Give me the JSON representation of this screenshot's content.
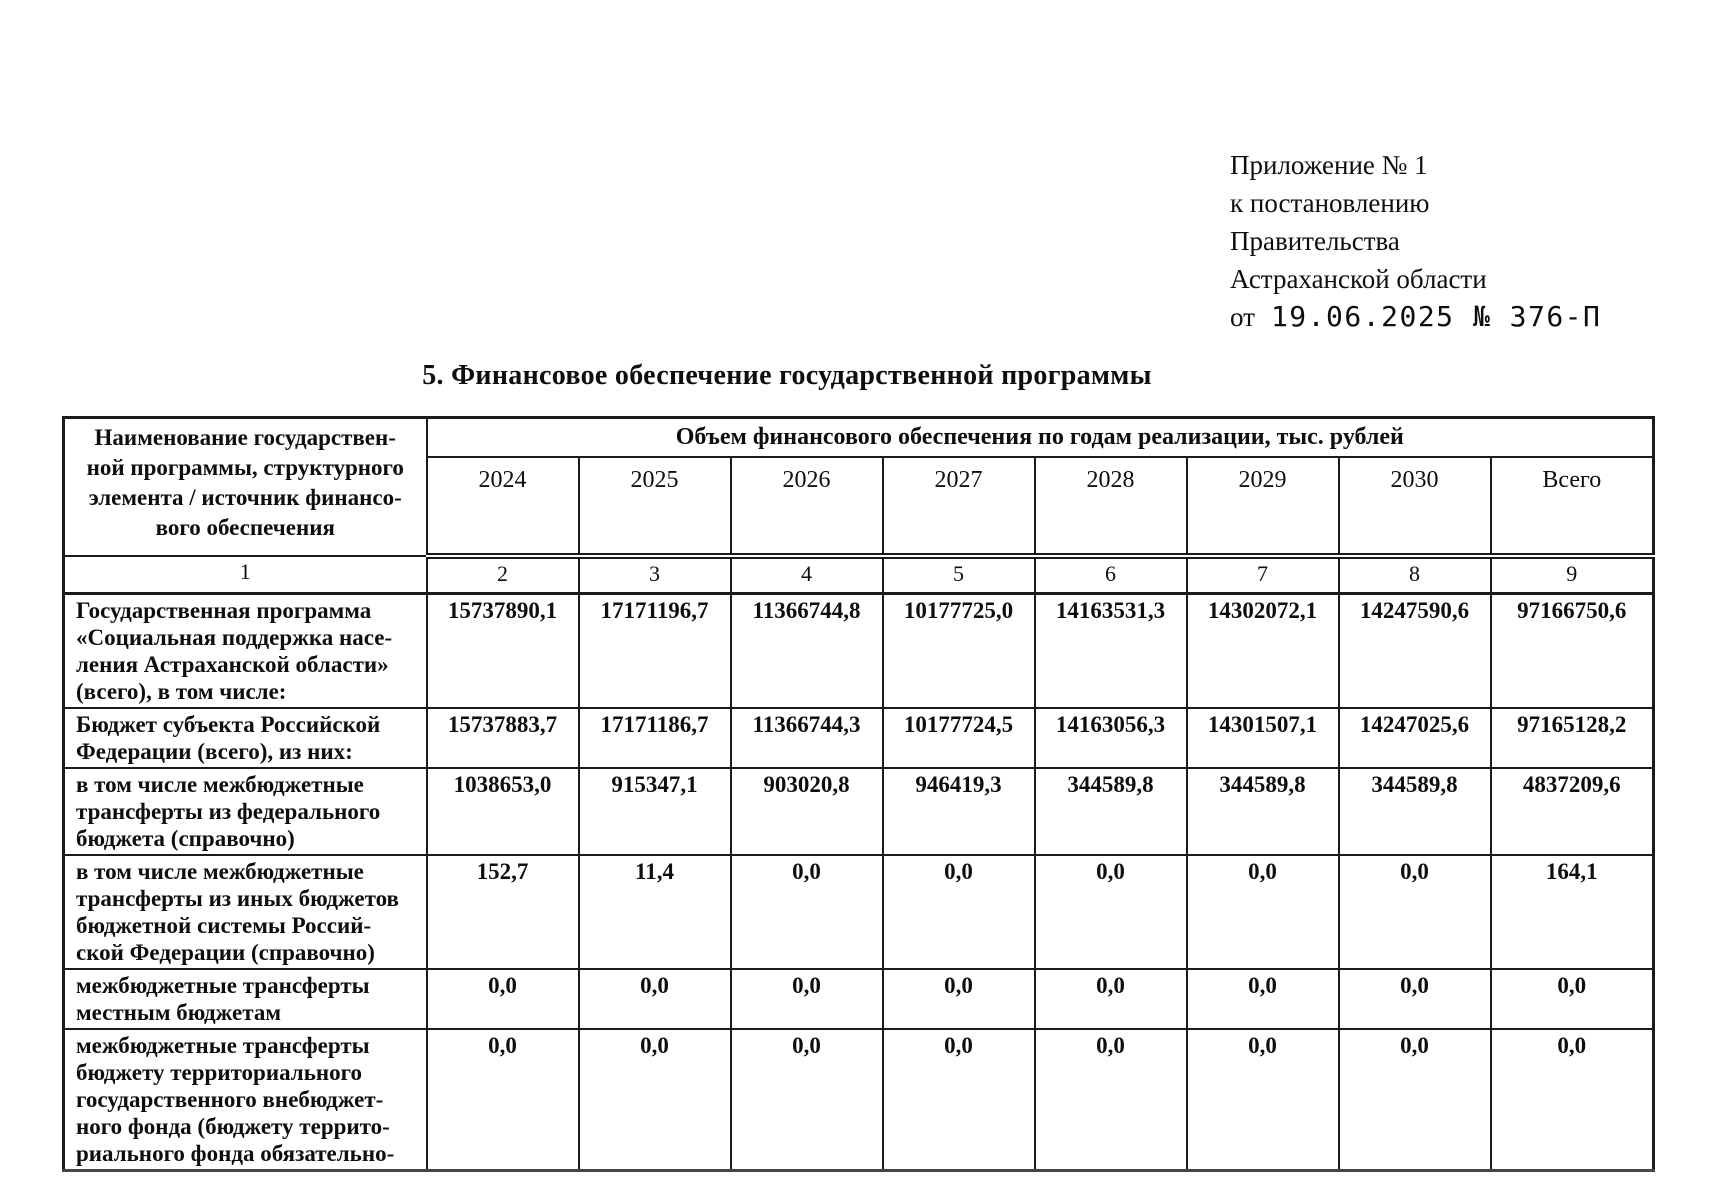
{
  "appendix": {
    "lines": [
      "Приложение № 1",
      "к постановлению",
      "Правительства",
      "Астраханской области"
    ],
    "date_prefix": "от",
    "date_value": "19.06.2025 № 376-П"
  },
  "title": "5. Финансовое обеспечение государственной программы",
  "table": {
    "col1_header": "Наименование государствен-\nной программы, структурного\nэлемента / источник финансо-\nвого обеспечения",
    "span_header": "Объем финансового обеспечения по годам реализации, тыс. рублей",
    "year_headers": [
      "2024",
      "2025",
      "2026",
      "2027",
      "2028",
      "2029",
      "2030",
      "Всего"
    ],
    "column_numbers": [
      "1",
      "2",
      "3",
      "4",
      "5",
      "6",
      "7",
      "8",
      "9"
    ],
    "rows": [
      {
        "label": "Государственная программа\n«Социальная поддержка насе-\nления Астраханской области»\n(всего), в том числе:",
        "values": [
          "15737890,1",
          "17171196,7",
          "11366744,8",
          "10177725,0",
          "14163531,3",
          "14302072,1",
          "14247590,6",
          "97166750,6"
        ]
      },
      {
        "label": "Бюджет субъекта Российской\nФедерации (всего), из них:",
        "values": [
          "15737883,7",
          "17171186,7",
          "11366744,3",
          "10177724,5",
          "14163056,3",
          "14301507,1",
          "14247025,6",
          "97165128,2"
        ]
      },
      {
        "label": "в том числе межбюджетные\nтрансферты из федерального\nбюджета (справочно)",
        "values": [
          "1038653,0",
          "915347,1",
          "903020,8",
          "946419,3",
          "344589,8",
          "344589,8",
          "344589,8",
          "4837209,6"
        ]
      },
      {
        "label": "в том числе межбюджетные\nтрансферты из иных бюджетов\nбюджетной системы Россий-\nской Федерации (справочно)",
        "values": [
          "152,7",
          "11,4",
          "0,0",
          "0,0",
          "0,0",
          "0,0",
          "0,0",
          "164,1"
        ]
      },
      {
        "label": "межбюджетные трансферты\nместным бюджетам",
        "values": [
          "0,0",
          "0,0",
          "0,0",
          "0,0",
          "0,0",
          "0,0",
          "0,0",
          "0,0"
        ]
      },
      {
        "label": "межбюджетные трансферты\nбюджету территориального\nгосударственного внебюджет-\nного фонда (бюджету террито-\nриального фонда обязательно-",
        "values": [
          "0,0",
          "0,0",
          "0,0",
          "0,0",
          "0,0",
          "0,0",
          "0,0",
          "0,0"
        ]
      }
    ]
  }
}
